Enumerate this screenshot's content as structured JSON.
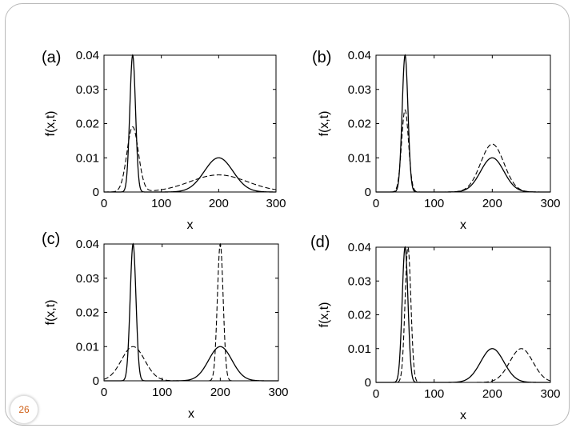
{
  "slide": {
    "page_number": "26"
  },
  "chart_data": [
    {
      "type": "line",
      "panel_label": "(a)",
      "xlabel": "x",
      "ylabel": "f(x,t)",
      "xlim": [
        0,
        300
      ],
      "ylim": [
        0,
        0.04
      ],
      "xticks": [
        "0",
        "100",
        "200",
        "300"
      ],
      "yticks": [
        "0",
        "0.01",
        "0.02",
        "0.03",
        "0.04"
      ],
      "grid": false,
      "series": [
        {
          "style": "solid",
          "components": [
            {
              "mu": 50,
              "sigma": 5,
              "amp": 0.04
            },
            {
              "mu": 200,
              "sigma": 25,
              "amp": 0.01
            }
          ]
        },
        {
          "style": "dashed",
          "components": [
            {
              "mu": 50,
              "sigma": 10,
              "amp": 0.019
            },
            {
              "mu": 200,
              "sigma": 50,
              "amp": 0.005
            }
          ]
        }
      ]
    },
    {
      "type": "line",
      "panel_label": "(b)",
      "xlabel": "x",
      "ylabel": "f(x,t)",
      "xlim": [
        0,
        300
      ],
      "ylim": [
        0,
        0.04
      ],
      "xticks": [
        "0",
        "100",
        "200",
        "300"
      ],
      "yticks": [
        "0",
        "0.01",
        "0.02",
        "0.03",
        "0.04"
      ],
      "grid": false,
      "series": [
        {
          "style": "solid",
          "components": [
            {
              "mu": 50,
              "sigma": 5,
              "amp": 0.04
            },
            {
              "mu": 200,
              "sigma": 20,
              "amp": 0.01
            }
          ]
        },
        {
          "style": "dashed",
          "components": [
            {
              "mu": 50,
              "sigma": 6,
              "amp": 0.024
            },
            {
              "mu": 200,
              "sigma": 20,
              "amp": 0.014
            }
          ]
        }
      ]
    },
    {
      "type": "line",
      "panel_label": "(c)",
      "xlabel": "x",
      "ylabel": "f(x,t)",
      "xlim": [
        0,
        300
      ],
      "ylim": [
        0,
        0.04
      ],
      "xticks": [
        "0",
        "100",
        "200",
        "300"
      ],
      "yticks": [
        "0",
        "0.01",
        "0.02",
        "0.03",
        "0.04"
      ],
      "grid": false,
      "series": [
        {
          "style": "solid",
          "components": [
            {
              "mu": 50,
              "sigma": 5,
              "amp": 0.04
            },
            {
              "mu": 200,
              "sigma": 20,
              "amp": 0.01
            }
          ]
        },
        {
          "style": "dashed",
          "components": [
            {
              "mu": 50,
              "sigma": 20,
              "amp": 0.01
            },
            {
              "mu": 200,
              "sigma": 5,
              "amp": 0.04
            }
          ]
        }
      ]
    },
    {
      "type": "line",
      "panel_label": "(d)",
      "xlabel": "x",
      "ylabel": "f(x,t)",
      "xlim": [
        0,
        300
      ],
      "ylim": [
        0,
        0.04
      ],
      "xticks": [
        "0",
        "100",
        "200",
        "300"
      ],
      "yticks": [
        "0",
        "0.01",
        "0.02",
        "0.03",
        "0.04"
      ],
      "grid": false,
      "series": [
        {
          "style": "solid",
          "components": [
            {
              "mu": 50,
              "sigma": 5,
              "amp": 0.04
            },
            {
              "mu": 200,
              "sigma": 20,
              "amp": 0.01
            }
          ]
        },
        {
          "style": "dashed",
          "components": [
            {
              "mu": 55,
              "sigma": 5,
              "amp": 0.04
            },
            {
              "mu": 250,
              "sigma": 20,
              "amp": 0.01
            }
          ]
        }
      ]
    }
  ]
}
